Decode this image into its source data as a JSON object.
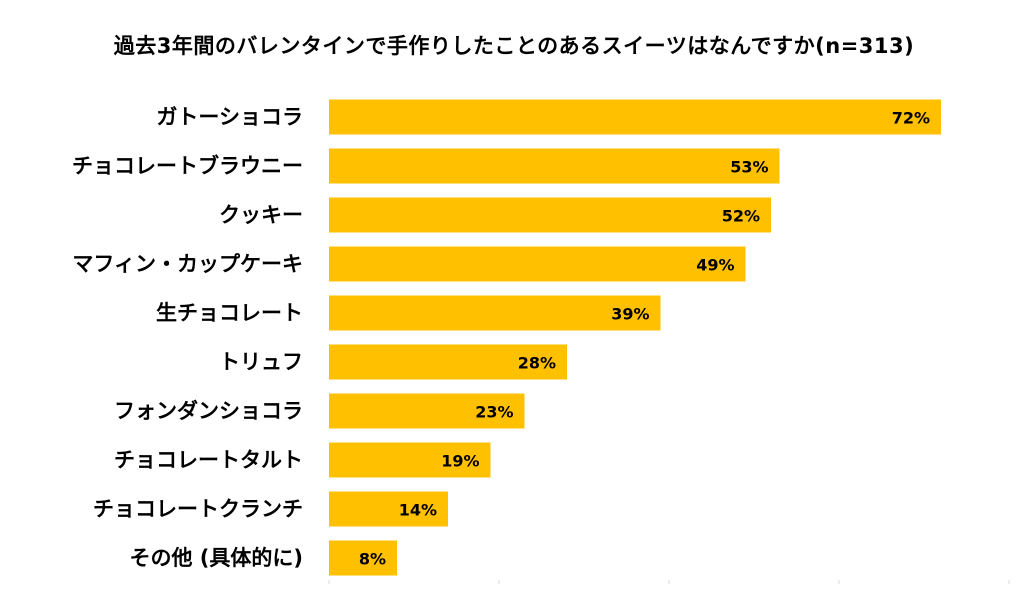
{
  "chart_data": {
    "type": "bar",
    "orientation": "horizontal",
    "title": "過去3年間のバレンタインで手作りしたことのあるスイーツはなんですか(n=313)",
    "xlabel": "",
    "ylabel": "",
    "unit": "%",
    "xlim": [
      0,
      80
    ],
    "grid": false,
    "legend": "none",
    "bar_color": "#FFC000",
    "categories": [
      "ガトーショコラ",
      "チョコレートブラウニー",
      "クッキー",
      "マフィン・カップケーキ",
      "生チョコレート",
      "トリュフ",
      "フォンダンショコラ",
      "チョコレートタルト",
      "チョコレートクランチ",
      "その他 (具体的に)"
    ],
    "values": [
      72,
      53,
      52,
      49,
      39,
      28,
      23,
      19,
      14,
      8
    ],
    "value_labels": [
      "72%",
      "53%",
      "52%",
      "49%",
      "39%",
      "28%",
      "23%",
      "19%",
      "14%",
      "8%"
    ]
  }
}
